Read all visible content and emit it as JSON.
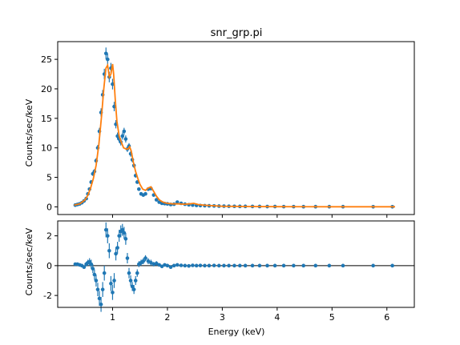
{
  "chart_data": [
    {
      "type": "scatter",
      "title": "snr_grp.pi",
      "xlabel": "",
      "ylabel": "Counts/sec/keV",
      "xlim": [
        0.0,
        6.5
      ],
      "ylim": [
        -1.3,
        28.0
      ],
      "yticks": [
        0,
        5,
        10,
        15,
        20,
        25
      ],
      "grid": false,
      "series": [
        {
          "kind": "data_points_with_errorbars",
          "color": "#1f77b4",
          "x": [
            0.32,
            0.36,
            0.4,
            0.44,
            0.48,
            0.52,
            0.55,
            0.58,
            0.61,
            0.64,
            0.67,
            0.7,
            0.73,
            0.76,
            0.79,
            0.82,
            0.85,
            0.88,
            0.91,
            0.94,
            0.97,
            1.0,
            1.03,
            1.06,
            1.09,
            1.12,
            1.15,
            1.18,
            1.21,
            1.24,
            1.27,
            1.3,
            1.33,
            1.36,
            1.39,
            1.42,
            1.45,
            1.48,
            1.52,
            1.56,
            1.6,
            1.65,
            1.7,
            1.75,
            1.8,
            1.85,
            1.9,
            1.95,
            2.0,
            2.06,
            2.12,
            2.18,
            2.25,
            2.32,
            2.39,
            2.46,
            2.53,
            2.6,
            2.68,
            2.76,
            2.85,
            2.94,
            3.03,
            3.12,
            3.22,
            3.32,
            3.42,
            3.55,
            3.68,
            3.82,
            3.96,
            4.12,
            4.3,
            4.48,
            4.7,
            4.95,
            5.2,
            5.75,
            6.1
          ],
          "y": [
            0.3,
            0.4,
            0.5,
            0.7,
            1.0,
            1.4,
            2.2,
            3.0,
            4.2,
            5.6,
            6.0,
            7.8,
            10.0,
            12.8,
            16.0,
            19.0,
            22.5,
            26.0,
            25.0,
            22.0,
            23.5,
            20.8,
            17.0,
            14.0,
            12.0,
            11.5,
            11.0,
            12.0,
            12.8,
            11.5,
            9.8,
            10.3,
            9.0,
            8.0,
            7.0,
            5.3,
            4.2,
            3.0,
            2.2,
            2.0,
            2.2,
            3.0,
            3.1,
            2.0,
            1.2,
            0.8,
            0.6,
            0.55,
            0.5,
            0.4,
            0.45,
            0.8,
            0.6,
            0.45,
            0.35,
            0.3,
            0.25,
            0.22,
            0.2,
            0.18,
            0.15,
            0.13,
            0.12,
            0.1,
            0.09,
            0.08,
            0.08,
            0.07,
            0.06,
            0.05,
            0.05,
            0.04,
            0.04,
            0.03,
            0.03,
            0.03,
            0.03,
            0.02,
            0.02
          ],
          "yerr": [
            0.1,
            0.1,
            0.1,
            0.1,
            0.15,
            0.2,
            0.25,
            0.3,
            0.35,
            0.35,
            0.4,
            0.45,
            0.5,
            0.6,
            0.7,
            0.8,
            0.9,
            1.0,
            1.0,
            0.9,
            0.9,
            0.9,
            0.8,
            0.7,
            0.6,
            0.6,
            0.6,
            0.6,
            0.6,
            0.6,
            0.5,
            0.5,
            0.5,
            0.45,
            0.4,
            0.35,
            0.3,
            0.25,
            0.2,
            0.2,
            0.2,
            0.25,
            0.25,
            0.2,
            0.15,
            0.1,
            0.1,
            0.1,
            0.1,
            0.08,
            0.08,
            0.1,
            0.08,
            0.08,
            0.06,
            0.05,
            0.05,
            0.05,
            0.04,
            0.04,
            0.03,
            0.03,
            0.03,
            0.03,
            0.02,
            0.02,
            0.02,
            0.02,
            0.02,
            0.02,
            0.02,
            0.02,
            0.02,
            0.02,
            0.02,
            0.02,
            0.02,
            0.02,
            0.02
          ]
        },
        {
          "kind": "model_line",
          "color": "#ff7f0e",
          "x": [
            0.3,
            0.4,
            0.5,
            0.55,
            0.6,
            0.65,
            0.7,
            0.75,
            0.8,
            0.84,
            0.88,
            0.91,
            0.94,
            0.97,
            1.0,
            1.02,
            1.05,
            1.08,
            1.12,
            1.15,
            1.2,
            1.25,
            1.28,
            1.31,
            1.34,
            1.38,
            1.42,
            1.46,
            1.5,
            1.55,
            1.6,
            1.65,
            1.7,
            1.75,
            1.8,
            1.85,
            1.9,
            1.95,
            2.0,
            2.1,
            2.2,
            2.3,
            2.4,
            2.48,
            2.56,
            2.65,
            2.8,
            3.0,
            3.5,
            4.0,
            5.0,
            6.15
          ],
          "y": [
            0.3,
            0.5,
            1.2,
            2.0,
            3.2,
            4.8,
            7.0,
            10.5,
            15.5,
            20.0,
            23.5,
            24.0,
            22.0,
            22.5,
            24.2,
            22.5,
            18.0,
            14.5,
            12.0,
            11.2,
            10.0,
            9.8,
            9.8,
            10.2,
            9.5,
            7.5,
            6.0,
            4.8,
            3.8,
            3.0,
            2.8,
            3.2,
            3.4,
            2.6,
            1.8,
            1.2,
            0.9,
            0.7,
            0.6,
            0.5,
            0.5,
            0.45,
            0.5,
            0.6,
            0.4,
            0.3,
            0.2,
            0.1,
            0.05,
            0.03,
            0.02,
            0.02
          ]
        }
      ]
    },
    {
      "type": "scatter",
      "title": "",
      "xlabel": "Energy (keV)",
      "ylabel": "Counts/sec/keV",
      "xlim": [
        0.0,
        6.5
      ],
      "ylim": [
        -2.8,
        3.0
      ],
      "xticks": [
        1,
        2,
        3,
        4,
        5,
        6
      ],
      "yticks": [
        -2,
        0,
        2
      ],
      "reference_line_y": 0,
      "grid": false,
      "series": [
        {
          "kind": "residuals_with_errorbars",
          "color": "#1f77b4",
          "x": [
            0.32,
            0.36,
            0.4,
            0.44,
            0.48,
            0.52,
            0.55,
            0.58,
            0.61,
            0.64,
            0.67,
            0.7,
            0.73,
            0.76,
            0.79,
            0.82,
            0.85,
            0.88,
            0.91,
            0.94,
            0.97,
            1.0,
            1.03,
            1.06,
            1.09,
            1.12,
            1.15,
            1.18,
            1.21,
            1.24,
            1.27,
            1.3,
            1.33,
            1.36,
            1.39,
            1.42,
            1.45,
            1.48,
            1.52,
            1.56,
            1.6,
            1.65,
            1.7,
            1.75,
            1.8,
            1.85,
            1.9,
            1.95,
            2.0,
            2.06,
            2.12,
            2.18,
            2.25,
            2.32,
            2.39,
            2.46,
            2.53,
            2.6,
            2.68,
            2.76,
            2.85,
            2.94,
            3.03,
            3.12,
            3.22,
            3.32,
            3.42,
            3.55,
            3.68,
            3.82,
            3.96,
            4.12,
            4.3,
            4.48,
            4.7,
            4.95,
            5.2,
            5.75,
            6.1
          ],
          "y": [
            0.1,
            0.1,
            0.05,
            0.0,
            -0.1,
            0.1,
            0.2,
            0.25,
            0.1,
            -0.2,
            -0.6,
            -1.0,
            -1.6,
            -2.2,
            -2.6,
            -1.6,
            -0.5,
            2.4,
            2.0,
            1.0,
            -1.2,
            -1.8,
            -1.0,
            0.8,
            1.2,
            2.0,
            2.3,
            2.4,
            2.2,
            1.8,
            0.5,
            -0.5,
            -1.0,
            -1.4,
            -1.6,
            -1.0,
            -0.5,
            0.1,
            0.2,
            0.3,
            0.5,
            0.3,
            0.2,
            0.1,
            0.15,
            0.05,
            -0.05,
            0.05,
            0.0,
            -0.1,
            0.0,
            0.05,
            0.02,
            0.0,
            -0.02,
            0.02,
            0.0,
            0.01,
            0.0,
            0.0,
            0.01,
            0.0,
            0.0,
            0.0,
            0.0,
            0.0,
            0.0,
            0.0,
            0.0,
            0.0,
            0.0,
            0.0,
            0.0,
            0.0,
            0.0,
            0.0,
            0.0,
            0.0,
            0.0
          ],
          "yerr": [
            0.1,
            0.1,
            0.1,
            0.1,
            0.1,
            0.15,
            0.2,
            0.25,
            0.3,
            0.3,
            0.35,
            0.4,
            0.45,
            0.5,
            0.5,
            0.5,
            0.5,
            0.5,
            0.5,
            0.5,
            0.5,
            0.5,
            0.5,
            0.45,
            0.4,
            0.4,
            0.4,
            0.4,
            0.4,
            0.4,
            0.35,
            0.35,
            0.35,
            0.3,
            0.3,
            0.3,
            0.25,
            0.2,
            0.2,
            0.2,
            0.2,
            0.2,
            0.2,
            0.15,
            0.15,
            0.1,
            0.1,
            0.1,
            0.1,
            0.08,
            0.08,
            0.08,
            0.08,
            0.08,
            0.06,
            0.05,
            0.05,
            0.05,
            0.04,
            0.04,
            0.03,
            0.03,
            0.03,
            0.03,
            0.02,
            0.02,
            0.02,
            0.02,
            0.02,
            0.02,
            0.02,
            0.02,
            0.02,
            0.02,
            0.02,
            0.02,
            0.02,
            0.02,
            0.02
          ]
        }
      ]
    }
  ]
}
